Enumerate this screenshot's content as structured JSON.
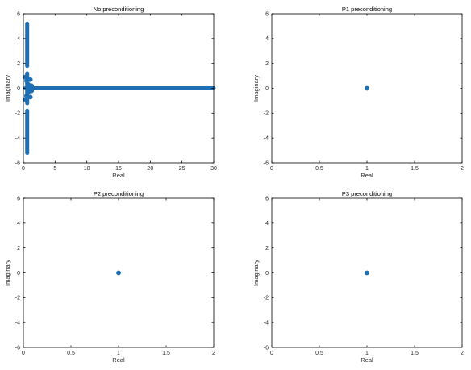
{
  "series_color": "#1f6fb4",
  "chart_data": [
    {
      "type": "scatter",
      "title": "No preconditioning",
      "xlabel": "Real",
      "ylabel": "Imaginary",
      "xlim": [
        0,
        30
      ],
      "ylim": [
        -6,
        6
      ],
      "xticks": [
        0,
        5,
        10,
        15,
        20,
        25,
        30
      ],
      "yticks": [
        -6,
        -4,
        -2,
        0,
        2,
        4,
        6
      ],
      "xtick_labels": [
        "0",
        "5",
        "10",
        "15",
        "20",
        "25",
        "30"
      ],
      "ytick_labels": [
        "-6",
        "-4",
        "-2",
        "0",
        "2",
        "4",
        "6"
      ],
      "grid": false,
      "eigenvalue_bands": [
        {
          "real": 0.6,
          "imag_from": 1.8,
          "imag_to": 5.2
        },
        {
          "real": 0.6,
          "imag_from": -5.2,
          "imag_to": -1.8
        },
        {
          "real": 0.6,
          "imag_from": -1.2,
          "imag_to": 1.2
        },
        {
          "real_from": 0.3,
          "real_to": 30,
          "imag": 0
        }
      ],
      "points": [
        {
          "x": 0.3,
          "y": 0.9
        },
        {
          "x": 0.3,
          "y": -0.9
        },
        {
          "x": 0.5,
          "y": 0.6
        },
        {
          "x": 0.5,
          "y": -0.6
        },
        {
          "x": 0.8,
          "y": 0.3
        },
        {
          "x": 0.8,
          "y": -0.3
        },
        {
          "x": 1.1,
          "y": 0.7
        },
        {
          "x": 1.1,
          "y": -0.7
        },
        {
          "x": 1.3,
          "y": 0.2
        },
        {
          "x": 1.3,
          "y": -0.2
        }
      ]
    },
    {
      "type": "scatter",
      "title": "P1 preconditioning",
      "xlabel": "Real",
      "ylabel": "Imaginary",
      "xlim": [
        0,
        2
      ],
      "ylim": [
        -6,
        6
      ],
      "xticks": [
        0,
        0.5,
        1,
        1.5,
        2
      ],
      "yticks": [
        -6,
        -4,
        -2,
        0,
        2,
        4,
        6
      ],
      "xtick_labels": [
        "0",
        "0.5",
        "1",
        "1.5",
        "2"
      ],
      "ytick_labels": [
        "-6",
        "-4",
        "-2",
        "0",
        "2",
        "4",
        "6"
      ],
      "grid": false,
      "eigenvalue_bands": [],
      "points": [
        {
          "x": 1,
          "y": 0
        }
      ]
    },
    {
      "type": "scatter",
      "title": "P2 preconditioning",
      "xlabel": "Real",
      "ylabel": "Imaginary",
      "xlim": [
        0,
        2
      ],
      "ylim": [
        -6,
        6
      ],
      "xticks": [
        0,
        0.5,
        1,
        1.5,
        2
      ],
      "yticks": [
        -6,
        -4,
        -2,
        0,
        2,
        4,
        6
      ],
      "xtick_labels": [
        "0",
        "0.5",
        "1",
        "1.5",
        "2"
      ],
      "ytick_labels": [
        "-6",
        "-4",
        "-2",
        "0",
        "2",
        "4",
        "6"
      ],
      "grid": false,
      "eigenvalue_bands": [],
      "points": [
        {
          "x": 1,
          "y": 0
        }
      ]
    },
    {
      "type": "scatter",
      "title": "P3 preconditioning",
      "xlabel": "Real",
      "ylabel": "Imaginary",
      "xlim": [
        0,
        2
      ],
      "ylim": [
        -6,
        6
      ],
      "xticks": [
        0,
        0.5,
        1,
        1.5,
        2
      ],
      "yticks": [
        -6,
        -4,
        -2,
        0,
        2,
        4,
        6
      ],
      "xtick_labels": [
        "0",
        "0.5",
        "1",
        "1.5",
        "2"
      ],
      "ytick_labels": [
        "-6",
        "-4",
        "-2",
        "0",
        "2",
        "4",
        "6"
      ],
      "grid": false,
      "eigenvalue_bands": [],
      "points": [
        {
          "x": 1,
          "y": 0
        }
      ]
    }
  ]
}
